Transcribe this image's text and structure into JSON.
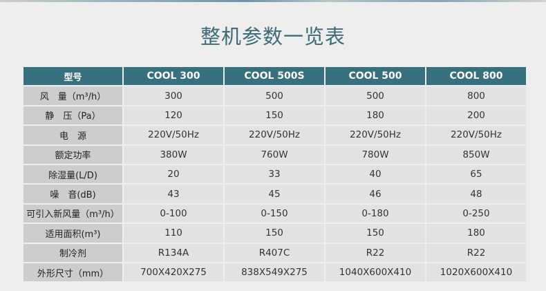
{
  "title": "整机参数一览表",
  "colors": {
    "header_bg": "#37707f",
    "label_bg": "#cdcdcd",
    "cell_bg": "#e2e2e2",
    "title": "#3d6b78"
  },
  "table": {
    "header": [
      "型号",
      "COOL 300",
      "COOL 500S",
      "COOL 500",
      "COOL 800"
    ],
    "rows": [
      {
        "label": "风　量（m³/h）",
        "values": [
          "300",
          "500",
          "500",
          "800"
        ]
      },
      {
        "label": "静　压（Pa）",
        "values": [
          "120",
          "150",
          "180",
          "200"
        ]
      },
      {
        "label": "电　源",
        "values": [
          "220V/50Hz",
          "220V/50Hz",
          "220V/50Hz",
          "220V/50Hz"
        ]
      },
      {
        "label": "额定功率",
        "values": [
          "380W",
          "760W",
          "780W",
          "850W"
        ]
      },
      {
        "label": "除湿量(L/D)",
        "values": [
          "20",
          "33",
          "40",
          "65"
        ]
      },
      {
        "label": "噪　音(dB)",
        "values": [
          "43",
          "45",
          "46",
          "48"
        ]
      },
      {
        "label": "可引入新风量（m³/h）",
        "values": [
          "0-100",
          "0-150",
          "0-180",
          "0-250"
        ]
      },
      {
        "label": "适用面积(m³)",
        "values": [
          "110",
          "150",
          "150",
          "180"
        ]
      },
      {
        "label": "制冷剂",
        "values": [
          "R134A",
          "R407C",
          "R22",
          "R22"
        ]
      },
      {
        "label": "外形尺寸（mm）",
        "values": [
          "700X420X275",
          "838X549X275",
          "1040X600X410",
          "1020X600X410"
        ]
      }
    ]
  }
}
